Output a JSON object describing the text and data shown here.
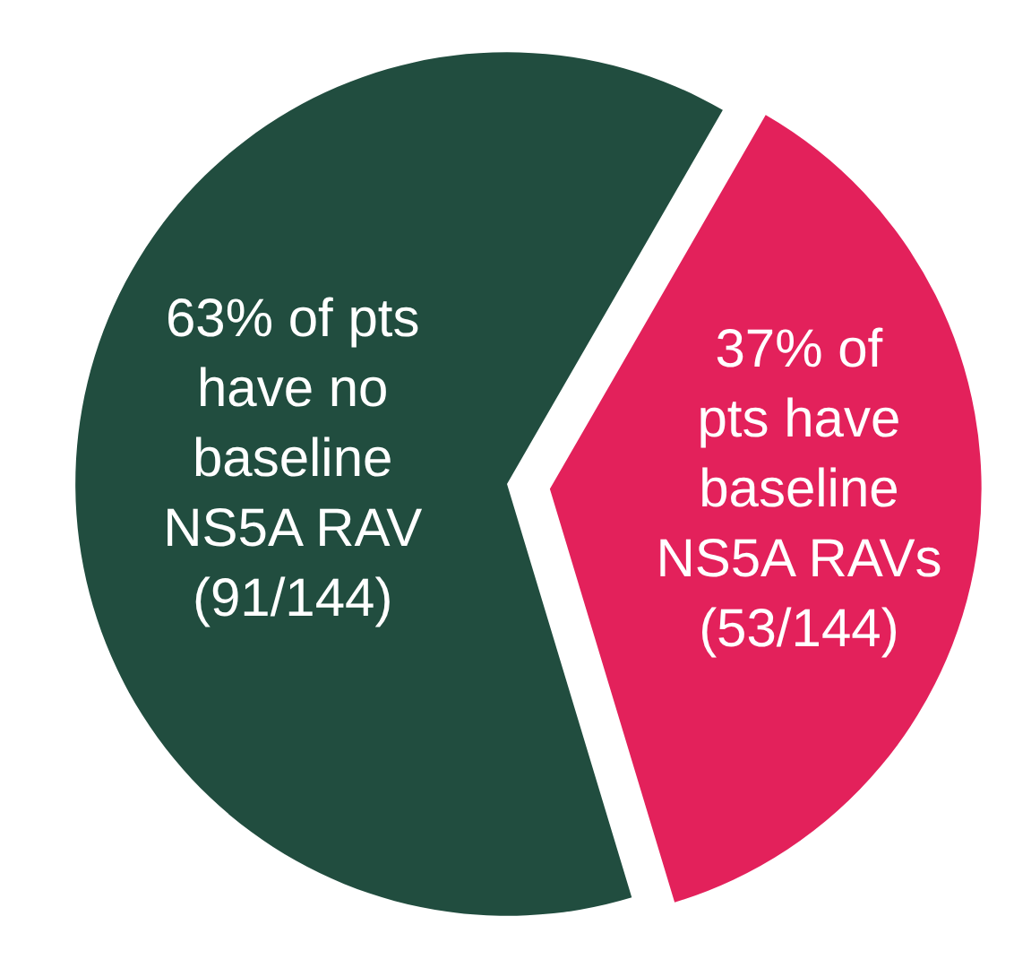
{
  "chart_data": {
    "type": "pie",
    "categories": [
      "37% of\npts have\nbaseline\nNS5A RAVs\n(53/144)",
      "63% of pts\nhave no\nbaseline\nNS5A RAV\n(91/144)"
    ],
    "values": [
      37,
      63
    ],
    "colors": [
      "#e3215b",
      "#214d3f"
    ],
    "legend": false
  }
}
